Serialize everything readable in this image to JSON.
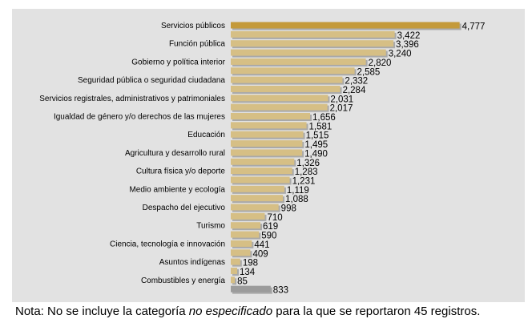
{
  "chart_data": {
    "type": "bar",
    "orientation": "horizontal",
    "title": "",
    "xlabel": "",
    "ylabel": "",
    "xlim": [
      0,
      4800
    ],
    "grid": false,
    "legend": "none",
    "bars": [
      {
        "label": "Servicios públicos",
        "value": 4777,
        "display": "4,777",
        "color": "#c49a3a"
      },
      {
        "label": "",
        "value": 3422,
        "display": "3,422",
        "color": "#d6bf85"
      },
      {
        "label": "Función pública",
        "value": 3396,
        "display": "3,396",
        "color": "#d6bf85"
      },
      {
        "label": "",
        "value": 3240,
        "display": "3,240",
        "color": "#d6bf85"
      },
      {
        "label": "Gobierno y política interior",
        "value": 2820,
        "display": "2,820",
        "color": "#d6bf85"
      },
      {
        "label": "",
        "value": 2585,
        "display": "2,585",
        "color": "#d6bf85"
      },
      {
        "label": "Seguridad pública o seguridad ciudadana",
        "value": 2332,
        "display": "2,332",
        "color": "#d6bf85"
      },
      {
        "label": "",
        "value": 2284,
        "display": "2,284",
        "color": "#d6bf85"
      },
      {
        "label": "Servicios registrales, administrativos y patrimoniales",
        "value": 2031,
        "display": "2,031",
        "color": "#d6bf85"
      },
      {
        "label": "",
        "value": 2017,
        "display": "2,017",
        "color": "#d6bf85"
      },
      {
        "label": "Igualdad de género y/o derechos de las mujeres",
        "value": 1656,
        "display": "1,656",
        "color": "#d6bf85"
      },
      {
        "label": "",
        "value": 1581,
        "display": "1,581",
        "color": "#d6bf85"
      },
      {
        "label": "Educación",
        "value": 1515,
        "display": "1,515",
        "color": "#d6bf85"
      },
      {
        "label": "",
        "value": 1495,
        "display": "1,495",
        "color": "#d6bf85"
      },
      {
        "label": "Agricultura y desarrollo rural",
        "value": 1490,
        "display": "1,490",
        "color": "#d6bf85"
      },
      {
        "label": "",
        "value": 1326,
        "display": "1,326",
        "color": "#d6bf85"
      },
      {
        "label": "Cultura física y/o deporte",
        "value": 1283,
        "display": "1,283",
        "color": "#d6bf85"
      },
      {
        "label": "",
        "value": 1231,
        "display": "1,231",
        "color": "#d6bf85"
      },
      {
        "label": "Medio ambiente y ecología",
        "value": 1119,
        "display": "1,119",
        "color": "#d6bf85"
      },
      {
        "label": "",
        "value": 1088,
        "display": "1,088",
        "color": "#d6bf85"
      },
      {
        "label": "Despacho del ejecutivo",
        "value": 998,
        "display": "998",
        "color": "#d6bf85"
      },
      {
        "label": "",
        "value": 710,
        "display": "710",
        "color": "#d6bf85"
      },
      {
        "label": "Turismo",
        "value": 619,
        "display": "619",
        "color": "#d6bf85"
      },
      {
        "label": "",
        "value": 590,
        "display": "590",
        "color": "#d6bf85"
      },
      {
        "label": "Ciencia, tecnología e innovación",
        "value": 441,
        "display": "441",
        "color": "#d6bf85"
      },
      {
        "label": "",
        "value": 409,
        "display": "409",
        "color": "#d6bf85"
      },
      {
        "label": "Asuntos indígenas",
        "value": 198,
        "display": "198",
        "color": "#d6bf85"
      },
      {
        "label": "",
        "value": 134,
        "display": "134",
        "color": "#d6bf85"
      },
      {
        "label": "Combustibles y energía",
        "value": 85,
        "display": "85",
        "color": "#d6bf85"
      },
      {
        "label": "",
        "value": 833,
        "display": "833",
        "color": "#9b9b9b"
      }
    ]
  },
  "note": {
    "prefix": "Nota: No se incluye la categoría ",
    "emphasis": "no especificado",
    "suffix": " para la que se reportaron 45 registros."
  }
}
